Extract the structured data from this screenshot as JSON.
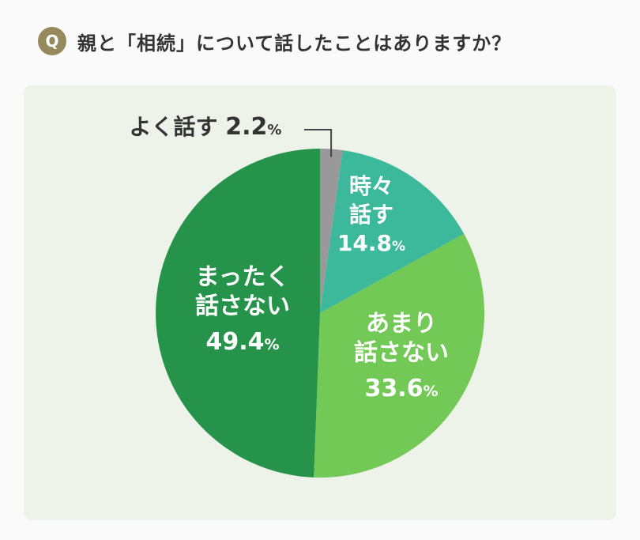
{
  "header": {
    "badge": "Q",
    "question": "親と「相続」について話したことはありますか？"
  },
  "colors": {
    "badge": "#968a5c",
    "panel": "#eef3e9"
  },
  "chart_data": {
    "type": "pie",
    "title": "",
    "unit": "%",
    "slices": [
      {
        "label": [
          "よく話す"
        ],
        "value": 2.2,
        "value_text": "2.2",
        "color": "#999999"
      },
      {
        "label": [
          "時々",
          "話す"
        ],
        "value": 14.8,
        "value_text": "14.8",
        "color": "#3cb99a"
      },
      {
        "label": [
          "あまり",
          "話さない"
        ],
        "value": 33.6,
        "value_text": "33.6",
        "color": "#72c955"
      },
      {
        "label": [
          "まったく",
          "話さない"
        ],
        "value": 49.4,
        "value_text": "49.4",
        "color": "#26934a"
      }
    ]
  }
}
